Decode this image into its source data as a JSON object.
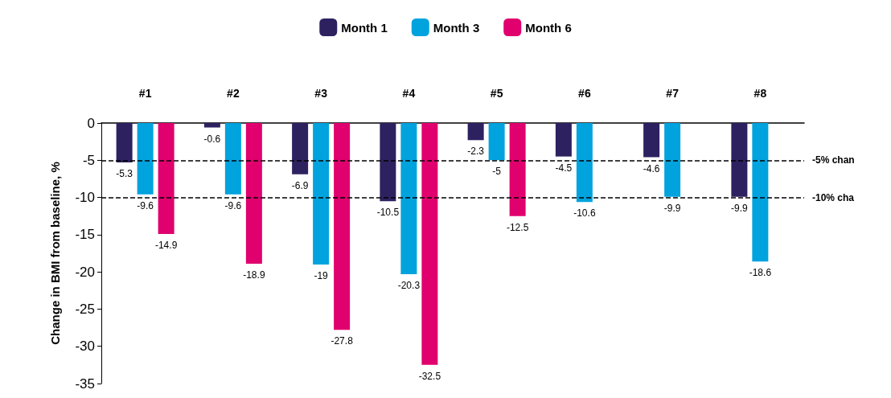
{
  "chart_data": {
    "type": "bar",
    "ylabel": "Change in BMI from baseline, %",
    "categories": [
      "#1",
      "#2",
      "#3",
      "#4",
      "#5",
      "#6",
      "#7",
      "#8"
    ],
    "series": [
      {
        "name": "Month 1",
        "color": "#2e2160",
        "values": [
          -5.3,
          -0.6,
          -6.9,
          -10.5,
          -2.3,
          -4.5,
          -4.6,
          -9.9
        ]
      },
      {
        "name": "Month 3",
        "color": "#00a3de",
        "values": [
          -9.6,
          -9.6,
          -19,
          -20.3,
          -5,
          -10.6,
          -9.9,
          -18.6
        ]
      },
      {
        "name": "Month 6",
        "color": "#e0006e",
        "values": [
          -14.9,
          -18.9,
          -27.8,
          -32.5,
          -12.5,
          null,
          null,
          null
        ]
      }
    ],
    "ylim": [
      -35,
      0
    ],
    "yticks": [
      -35,
      -30,
      -25,
      -20,
      -15,
      -10,
      -5,
      0
    ],
    "data_labels": true,
    "legend": "top",
    "grid": false,
    "ref_lines": [
      {
        "axis": "y",
        "value": -5,
        "label": "-5% chan",
        "line_style": "dashed",
        "color": "#000000"
      },
      {
        "axis": "y",
        "value": -10,
        "label": "-10% cha",
        "line_style": "dashed",
        "color": "#000000"
      }
    ]
  }
}
